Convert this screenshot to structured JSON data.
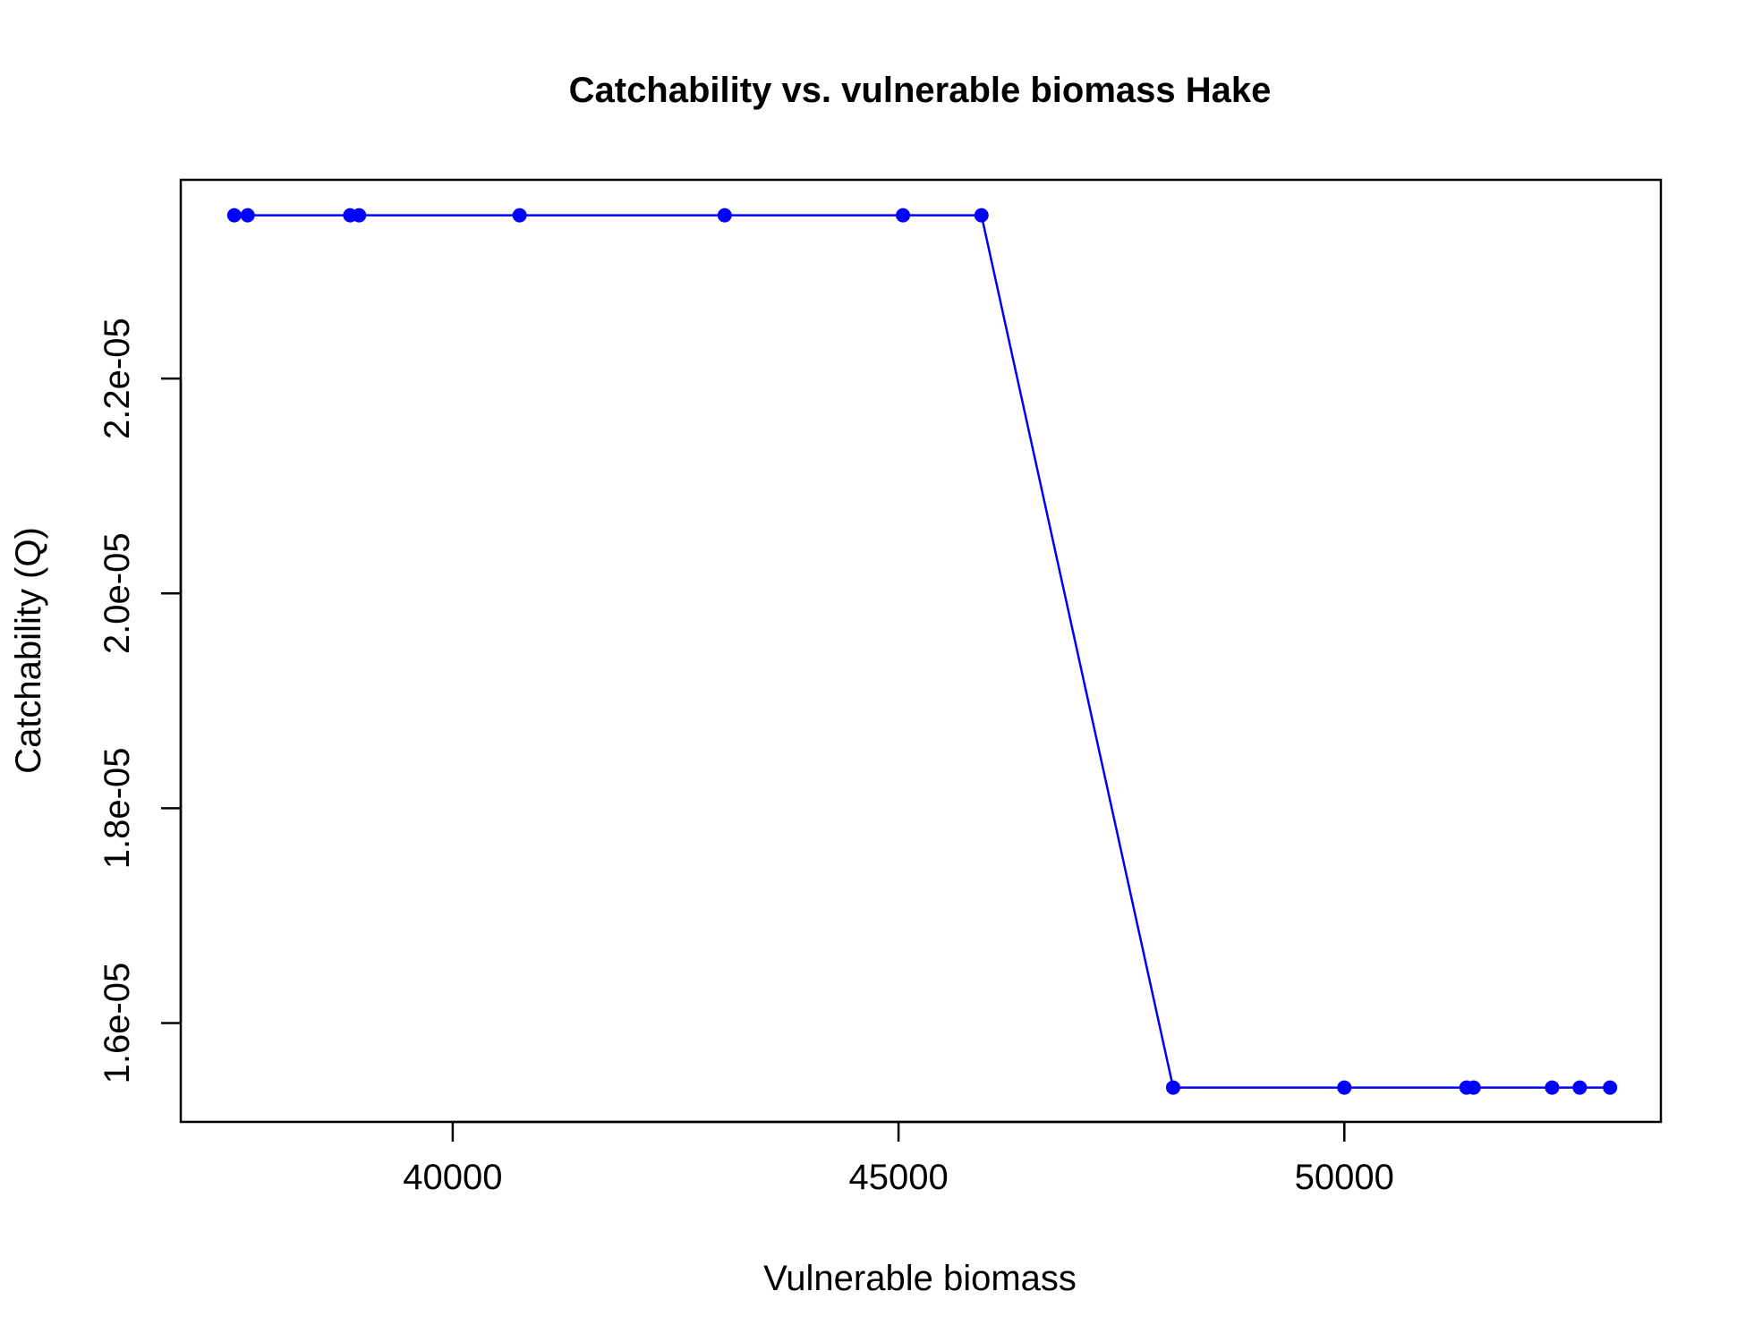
{
  "chart_data": {
    "type": "line",
    "title": "Catchability vs. vulnerable biomass Hake",
    "xlabel": "Vulnerable biomass",
    "ylabel": "Catchability (Q)",
    "xlim": [
      36950,
      53550
    ],
    "ylim": [
      1.508e-05,
      2.385e-05
    ],
    "xticks": [
      40000,
      45000,
      50000
    ],
    "xtick_labels": [
      "40000",
      "45000",
      "50000"
    ],
    "yticks": [
      1.6e-05,
      1.8e-05,
      2e-05,
      2.2e-05
    ],
    "ytick_labels": [
      "1.6e-05",
      "1.8e-05",
      "2.0e-05",
      "2.2e-05"
    ],
    "grid": false,
    "legend": "none",
    "series": [
      {
        "color": "#0000ff",
        "marker": "circle",
        "points": [
          {
            "x": 37550,
            "y": 2.352e-05
          },
          {
            "x": 37700,
            "y": 2.352e-05
          },
          {
            "x": 38850,
            "y": 2.352e-05
          },
          {
            "x": 38950,
            "y": 2.352e-05
          },
          {
            "x": 40750,
            "y": 2.352e-05
          },
          {
            "x": 43050,
            "y": 2.352e-05
          },
          {
            "x": 45050,
            "y": 2.352e-05
          },
          {
            "x": 45930,
            "y": 2.352e-05
          },
          {
            "x": 48080,
            "y": 1.54e-05
          },
          {
            "x": 50000,
            "y": 1.54e-05
          },
          {
            "x": 51370,
            "y": 1.54e-05
          },
          {
            "x": 51450,
            "y": 1.54e-05
          },
          {
            "x": 52330,
            "y": 1.54e-05
          },
          {
            "x": 52640,
            "y": 1.54e-05
          },
          {
            "x": 52980,
            "y": 1.54e-05
          }
        ]
      }
    ]
  }
}
